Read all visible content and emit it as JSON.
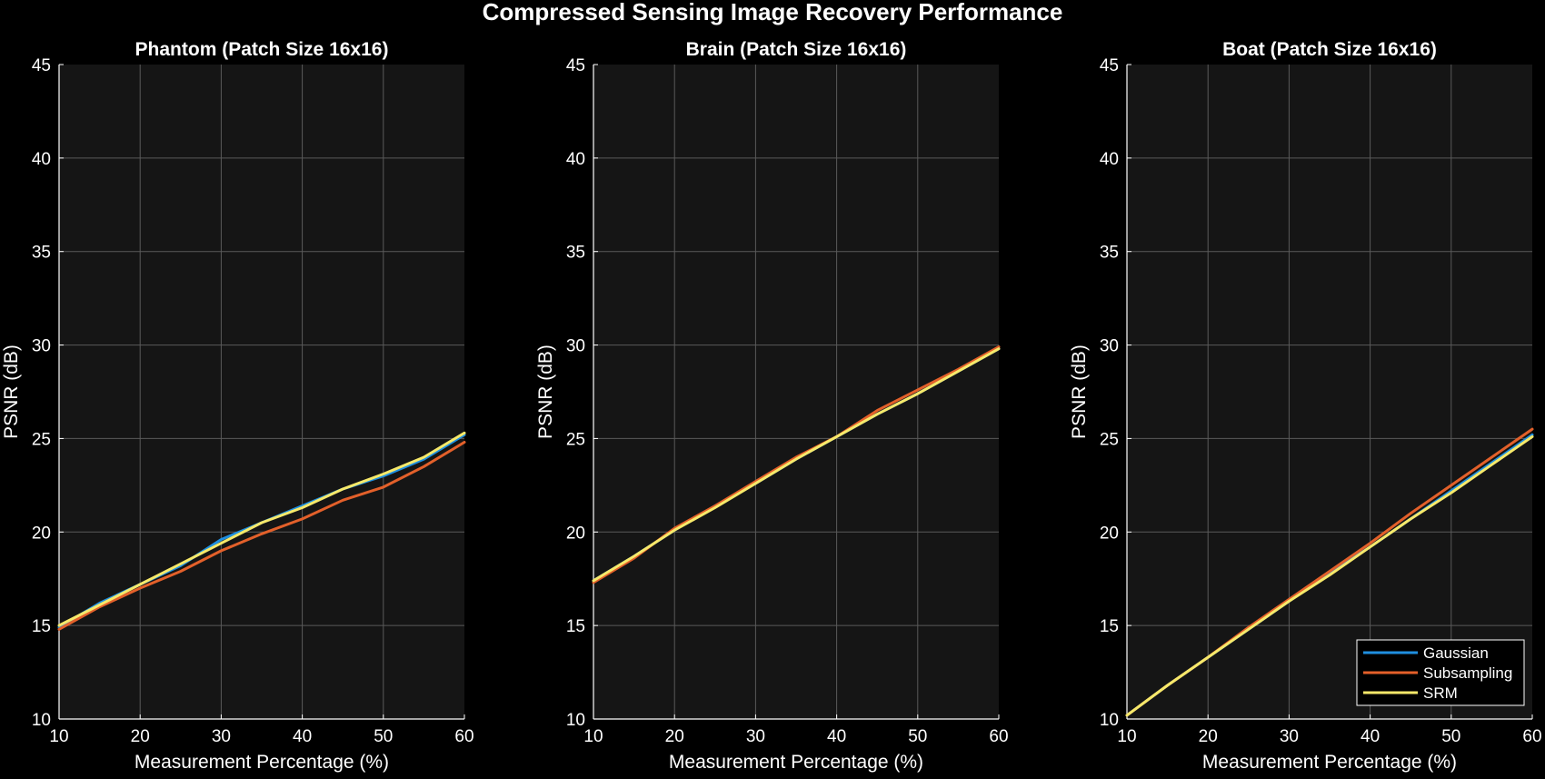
{
  "figure": {
    "suptitle": "Compressed Sensing Image Recovery Performance"
  },
  "colors": {
    "background": "#000000",
    "axes_background": "#151515",
    "axis_text": "#ffffff",
    "grid": "#5a5a5a",
    "gaussian": "#1f8fe0",
    "subsampling": "#e3602a",
    "srm": "#f7e96a"
  },
  "chart_data": [
    {
      "type": "line",
      "title": "Phantom (Patch Size 16x16)",
      "xlabel": "Measurement Percentage (%)",
      "ylabel": "PSNR (dB)",
      "xlim": [
        10,
        60
      ],
      "ylim": [
        10,
        45
      ],
      "xticks": [
        10,
        20,
        30,
        40,
        50,
        60
      ],
      "yticks": [
        10,
        15,
        20,
        25,
        30,
        35,
        40,
        45
      ],
      "grid": true,
      "legend": null,
      "series": [
        {
          "name": "Gaussian",
          "color": "gaussian",
          "x": [
            10,
            15,
            20,
            25,
            30,
            35,
            40,
            45,
            50,
            55,
            60
          ],
          "y": [
            14.9,
            16.2,
            17.2,
            18.2,
            19.6,
            20.5,
            21.4,
            22.3,
            23.0,
            23.9,
            25.2
          ]
        },
        {
          "name": "Subsampling",
          "color": "subsampling",
          "x": [
            10,
            15,
            20,
            25,
            30,
            35,
            40,
            45,
            50,
            55,
            60
          ],
          "y": [
            14.8,
            16.0,
            17.0,
            17.9,
            19.0,
            19.9,
            20.7,
            21.7,
            22.4,
            23.5,
            24.8
          ]
        },
        {
          "name": "SRM",
          "color": "srm",
          "x": [
            10,
            15,
            20,
            25,
            30,
            35,
            40,
            45,
            50,
            55,
            60
          ],
          "y": [
            15.0,
            16.1,
            17.2,
            18.3,
            19.4,
            20.5,
            21.3,
            22.3,
            23.1,
            24.0,
            25.3
          ]
        }
      ]
    },
    {
      "type": "line",
      "title": "Brain (Patch Size 16x16)",
      "xlabel": "Measurement Percentage (%)",
      "ylabel": "PSNR (dB)",
      "xlim": [
        10,
        60
      ],
      "ylim": [
        10,
        45
      ],
      "xticks": [
        10,
        20,
        30,
        40,
        50,
        60
      ],
      "yticks": [
        10,
        15,
        20,
        25,
        30,
        35,
        40,
        45
      ],
      "grid": true,
      "legend": null,
      "series": [
        {
          "name": "Gaussian",
          "color": "gaussian",
          "x": [
            10,
            15,
            20,
            25,
            30,
            35,
            40,
            45,
            50,
            55,
            60
          ],
          "y": [
            17.4,
            18.7,
            20.1,
            21.4,
            22.6,
            23.9,
            25.1,
            26.3,
            27.4,
            28.6,
            29.8
          ]
        },
        {
          "name": "Subsampling",
          "color": "subsampling",
          "x": [
            10,
            15,
            20,
            25,
            30,
            35,
            40,
            45,
            50,
            55,
            60
          ],
          "y": [
            17.3,
            18.6,
            20.2,
            21.4,
            22.7,
            24.0,
            25.1,
            26.5,
            27.6,
            28.7,
            29.9
          ]
        },
        {
          "name": "SRM",
          "color": "srm",
          "x": [
            10,
            15,
            20,
            25,
            30,
            35,
            40,
            45,
            50,
            55,
            60
          ],
          "y": [
            17.4,
            18.7,
            20.1,
            21.3,
            22.6,
            23.9,
            25.1,
            26.3,
            27.4,
            28.6,
            29.8
          ]
        }
      ]
    },
    {
      "type": "line",
      "title": "Boat (Patch Size 16x16)",
      "xlabel": "Measurement Percentage (%)",
      "ylabel": "PSNR (dB)",
      "xlim": [
        10,
        60
      ],
      "ylim": [
        10,
        45
      ],
      "xticks": [
        10,
        20,
        30,
        40,
        50,
        60
      ],
      "yticks": [
        10,
        15,
        20,
        25,
        30,
        35,
        40,
        45
      ],
      "grid": true,
      "legend": "bottom-right",
      "series": [
        {
          "name": "Gaussian",
          "color": "gaussian",
          "x": [
            10,
            15,
            20,
            25,
            30,
            35,
            40,
            45,
            50,
            55,
            60
          ],
          "y": [
            10.2,
            11.8,
            13.3,
            14.8,
            16.3,
            17.8,
            19.2,
            20.7,
            22.2,
            23.7,
            25.2
          ]
        },
        {
          "name": "Subsampling",
          "color": "subsampling",
          "x": [
            10,
            15,
            20,
            25,
            30,
            35,
            40,
            45,
            50,
            55,
            60
          ],
          "y": [
            10.2,
            11.8,
            13.3,
            14.9,
            16.4,
            17.9,
            19.4,
            21.0,
            22.5,
            24.0,
            25.5
          ]
        },
        {
          "name": "SRM",
          "color": "srm",
          "x": [
            10,
            15,
            20,
            25,
            30,
            35,
            40,
            45,
            50,
            55,
            60
          ],
          "y": [
            10.2,
            11.8,
            13.3,
            14.8,
            16.3,
            17.7,
            19.2,
            20.7,
            22.1,
            23.6,
            25.1
          ]
        }
      ]
    }
  ]
}
